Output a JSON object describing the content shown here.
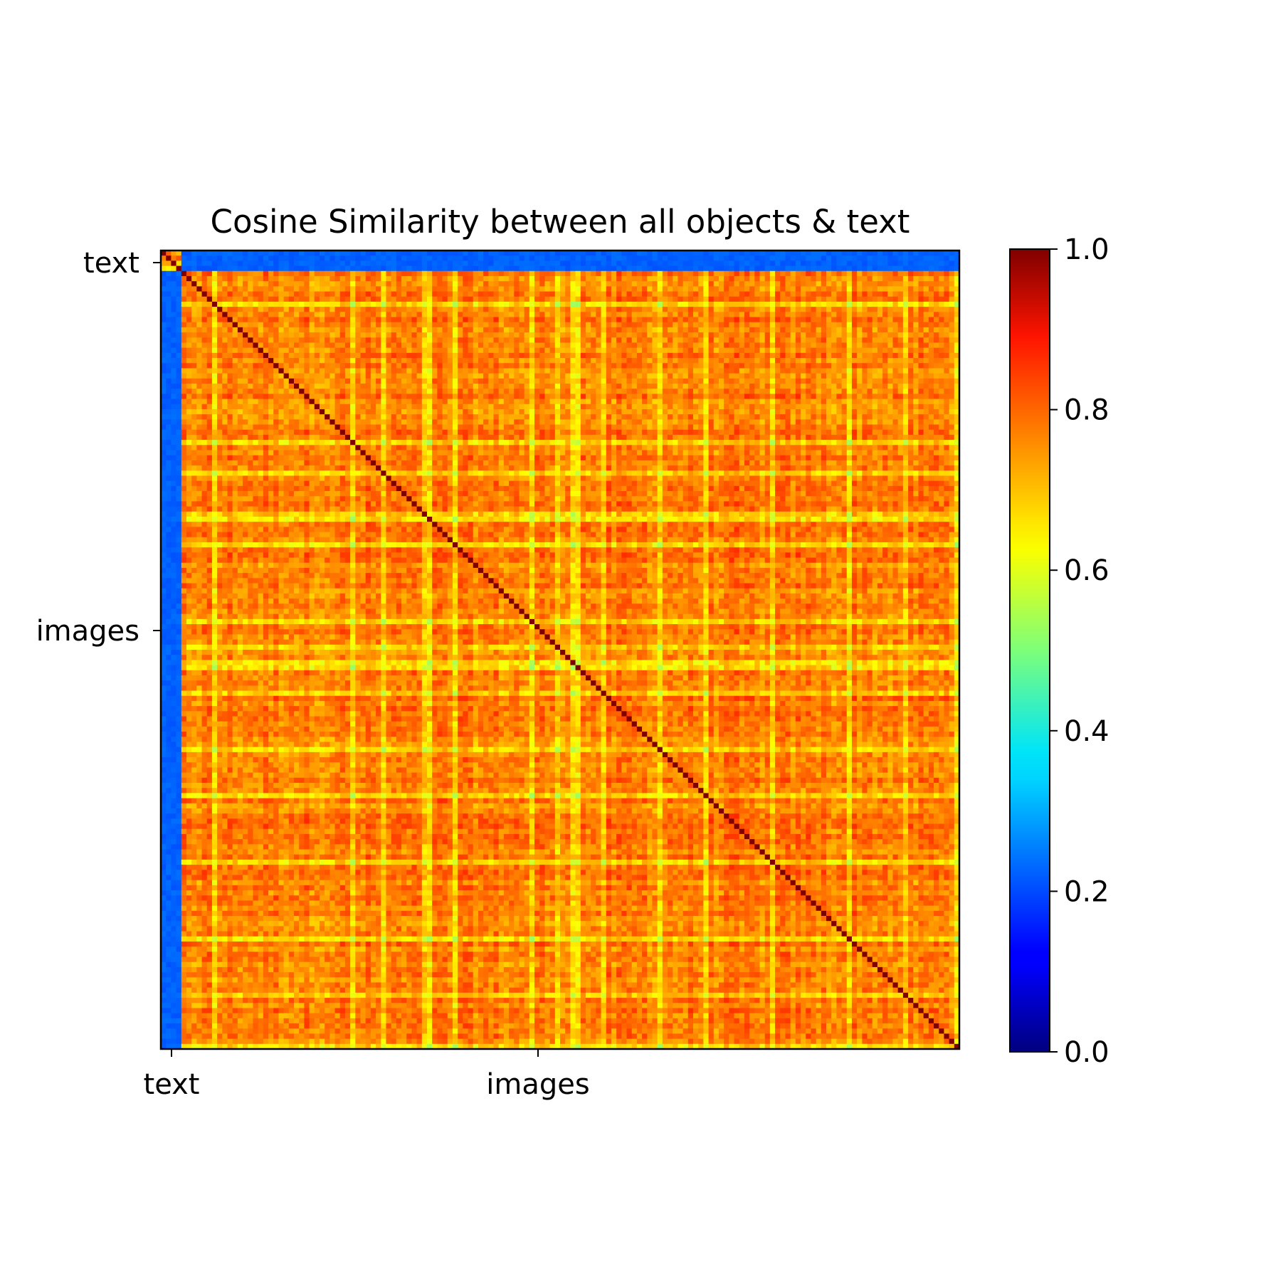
{
  "chart_data": {
    "type": "heatmap",
    "title": "Cosine Similarity between all objects & text",
    "xlabel": "",
    "ylabel": "",
    "x_tick_labels": [
      "text",
      "images"
    ],
    "y_tick_labels": [
      "text",
      "images"
    ],
    "block_labels": [
      "text",
      "images"
    ],
    "block_sizes_relative": [
      1,
      38
    ],
    "value_range": [
      0.0,
      1.0
    ],
    "colormap": "jet",
    "colorbar_ticks": [
      "0.0",
      "0.2",
      "0.4",
      "0.6",
      "0.8",
      "1.0"
    ],
    "blocks": {
      "text_text": 0.72,
      "text_images": 0.22,
      "images_images": 0.75
    },
    "diagonal_value": 1.0,
    "grid": false
  }
}
